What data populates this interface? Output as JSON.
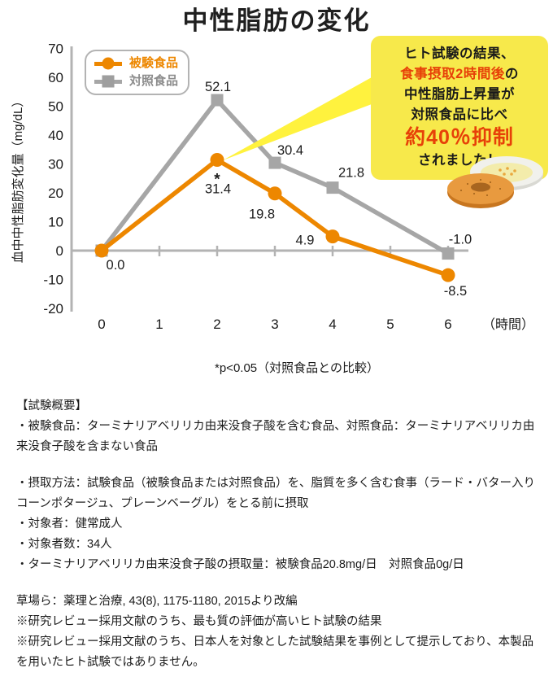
{
  "title": "中性脂肪の変化",
  "colors": {
    "test_food_orange": "#ed8700",
    "control_food_gray": "#a6a6a6",
    "axis_gray": "#b3b3b3",
    "bubble_yellow": "#f7e94b",
    "beam_yellow": "#fff23e",
    "accent_red": "#e74108"
  },
  "chart_data": {
    "type": "line",
    "x": [
      0,
      2,
      3,
      4,
      6
    ],
    "x_ticks": [
      0,
      1,
      2,
      3,
      4,
      5,
      6
    ],
    "x_unit": "（時間）",
    "ylabel": "血中中性脂肪変化量（mg/dL）",
    "ylim": [
      -20,
      70
    ],
    "y_ticks": [
      70,
      60,
      50,
      40,
      30,
      20,
      10,
      0,
      -10,
      -20
    ],
    "grid": false,
    "legend_position": "top-left-inside",
    "series": [
      {
        "key": "test-food",
        "name": "被験食品",
        "color": "#ed8700",
        "marker": "circle",
        "values": [
          0.0,
          31.4,
          19.8,
          4.9,
          -8.5
        ],
        "label_offsets": [
          [
            17,
            23
          ],
          [
            1,
            41
          ],
          [
            -16,
            31
          ],
          [
            -34,
            10
          ],
          [
            9,
            25
          ]
        ]
      },
      {
        "key": "control-food",
        "name": "対照食品",
        "color": "#a6a6a6",
        "marker": "square",
        "values": [
          0.0,
          52.1,
          30.4,
          21.8,
          -1.0
        ],
        "label_offsets": [
          null,
          [
            1,
            -11
          ],
          [
            19,
            -10
          ],
          [
            23,
            -13
          ],
          [
            15,
            -12
          ]
        ]
      }
    ],
    "significant_point": {
      "series": "test-food",
      "x": 2,
      "mark": "*"
    },
    "note": "*p<0.05（対照食品との比較）"
  },
  "callout": {
    "line1": "ヒト試験の結果、",
    "line2_red": "食事摂取2時間後",
    "line2_suffix": "の",
    "line3": "中性脂肪上昇量が",
    "line4": "対照食品に比べ",
    "line5_red": "約40％抑制",
    "line6": "されました！"
  },
  "summary": {
    "lines": [
      "【試験概要】",
      "・被験食品：ターミナリアベリリカ由来没食子酸を含む食品、対照食品：ターミナリアベリリカ由来没食子酸を含まない食品",
      "・摂取方法：試験食品（被験食品または対照食品）を、脂質を多く含む食事（ラード・バター入りコーンポタージュ、プレーンベーグル）をとる前に摂取",
      "・対象者：健常成人",
      "・対象者数：34人",
      "・ターミナリアベリリカ由来没食子酸の摂取量：被験食品20.8mg/日　対照食品0g/日",
      "草場ら：薬理と治療, 43(8), 1175-1180, 2015より改編",
      "※研究レビュー採用文献のうち、最も質の評価が高いヒト試験の結果",
      "※研究レビュー採用文献のうち、日本人を対象とした試験結果を事例として提示しており、本製品を用いたヒト試験ではありません。"
    ]
  }
}
